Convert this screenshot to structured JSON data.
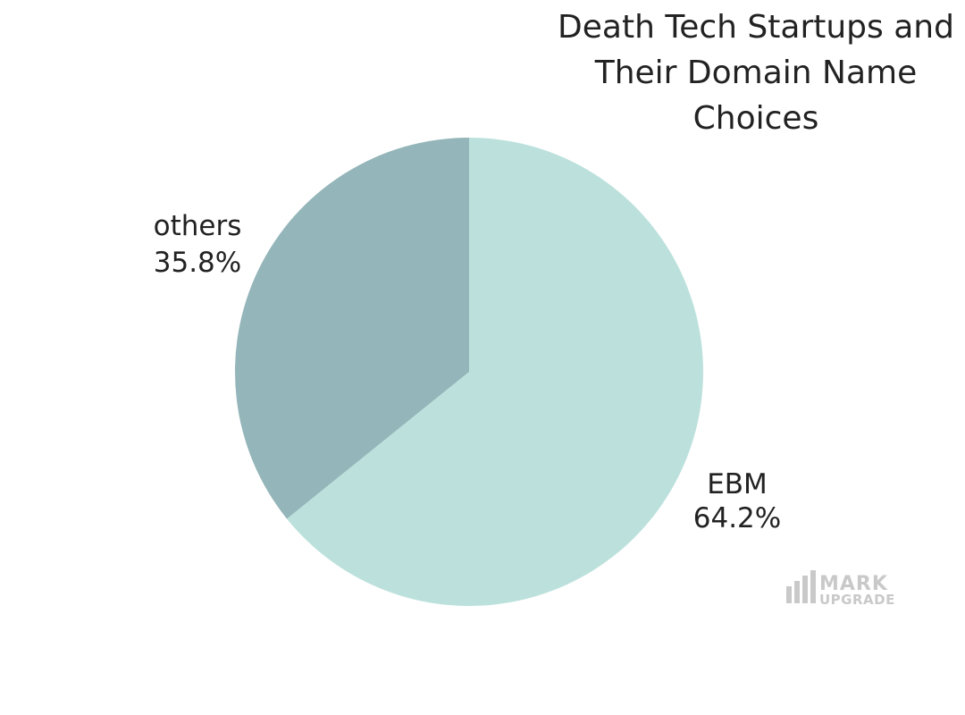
{
  "chart_data": {
    "type": "pie",
    "title_lines": [
      "Death Tech Startups and",
      "Their Domain Name",
      "Choices"
    ],
    "slices": [
      {
        "name": "EBM",
        "value": 64.2,
        "label": "64.2%",
        "color": "#bce1dc"
      },
      {
        "name": "others",
        "value": 35.8,
        "label": "35.8%",
        "color": "#94b5b9"
      }
    ]
  },
  "watermark": {
    "line1": "MARK",
    "line2": "UPGRADE",
    "icon": "bar-chart-icon",
    "color": "#c9c9c9"
  }
}
